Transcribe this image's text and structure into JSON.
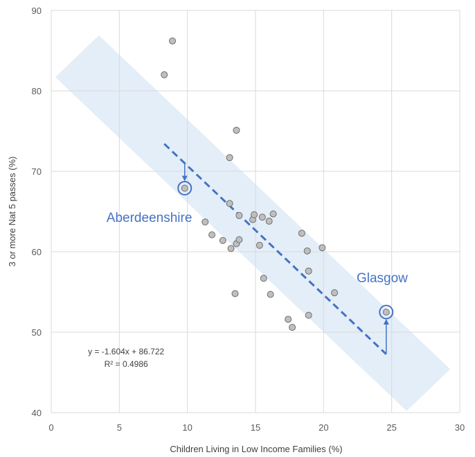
{
  "chart_data": {
    "type": "scatter",
    "xlabel": "Children Living in Low Income Families (%)",
    "ylabel": "3 or more Nat 5 passes (%)",
    "xlim": [
      0,
      30
    ],
    "ylim": [
      40,
      90
    ],
    "xticks": [
      0,
      5,
      10,
      15,
      20,
      25,
      30
    ],
    "yticks": [
      40,
      50,
      60,
      70,
      80,
      90
    ],
    "grid": true,
    "points": [
      {
        "x": 8.3,
        "y": 82.0
      },
      {
        "x": 8.9,
        "y": 86.2
      },
      {
        "x": 9.8,
        "y": 67.9
      },
      {
        "x": 11.3,
        "y": 63.7
      },
      {
        "x": 11.8,
        "y": 62.1
      },
      {
        "x": 12.6,
        "y": 61.4
      },
      {
        "x": 13.1,
        "y": 71.7
      },
      {
        "x": 13.1,
        "y": 66.0
      },
      {
        "x": 13.2,
        "y": 60.4
      },
      {
        "x": 13.5,
        "y": 54.8
      },
      {
        "x": 13.6,
        "y": 61.0
      },
      {
        "x": 13.6,
        "y": 75.1
      },
      {
        "x": 13.8,
        "y": 61.5
      },
      {
        "x": 13.8,
        "y": 64.5
      },
      {
        "x": 14.8,
        "y": 64.0
      },
      {
        "x": 14.9,
        "y": 64.6
      },
      {
        "x": 15.3,
        "y": 60.8
      },
      {
        "x": 15.5,
        "y": 64.3
      },
      {
        "x": 15.6,
        "y": 56.7
      },
      {
        "x": 16.0,
        "y": 63.8
      },
      {
        "x": 16.1,
        "y": 54.7
      },
      {
        "x": 16.3,
        "y": 64.7
      },
      {
        "x": 17.4,
        "y": 51.6
      },
      {
        "x": 17.7,
        "y": 50.6
      },
      {
        "x": 18.4,
        "y": 62.3
      },
      {
        "x": 18.8,
        "y": 60.1
      },
      {
        "x": 18.9,
        "y": 52.1
      },
      {
        "x": 18.9,
        "y": 57.6
      },
      {
        "x": 19.9,
        "y": 60.5
      },
      {
        "x": 20.8,
        "y": 54.9
      },
      {
        "x": 24.6,
        "y": 52.5
      }
    ],
    "trendline": {
      "equation": "y = -1.604x + 86.722",
      "r_squared": "R² = 0.4986",
      "slope": -1.604,
      "intercept": 86.722,
      "x_range": [
        8.3,
        24.6
      ],
      "style": "dashed",
      "color": "#4472c4"
    },
    "band": {
      "corners": [
        [
          0.3,
          81.7
        ],
        [
          3.5,
          86.9
        ],
        [
          29.3,
          45.4
        ],
        [
          26.1,
          40.2
        ]
      ],
      "color": "#dbe8f6"
    },
    "highlights": [
      {
        "label": "Aberdeenshire",
        "x": 9.8,
        "y": 67.9,
        "trend_y": 71.0,
        "label_pos": [
          7.2,
          63.7
        ]
      },
      {
        "label": "Glasgow",
        "x": 24.6,
        "y": 52.5,
        "trend_y": 47.3,
        "label_pos": [
          24.3,
          56.2
        ]
      }
    ],
    "equation_pos": [
      5.5,
      47.6
    ],
    "colors": {
      "point_fill": "#bfbfbf",
      "point_stroke": "#6e6e6e",
      "highlight": "#4472c4",
      "grid": "#d9d9d9"
    }
  }
}
